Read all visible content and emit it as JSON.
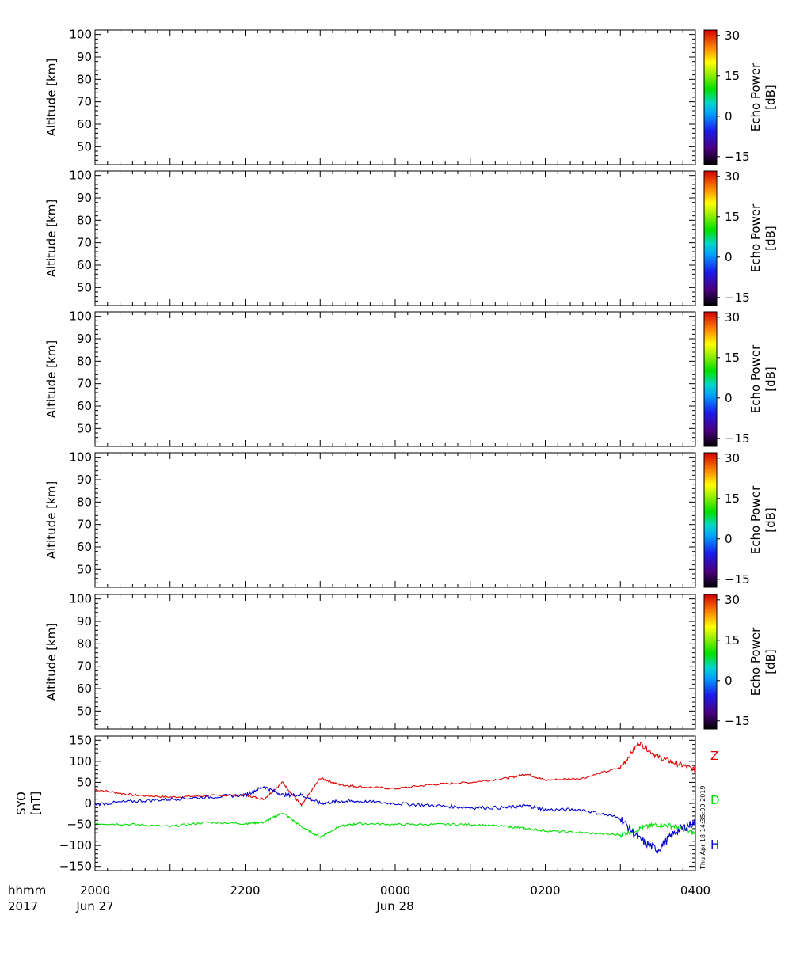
{
  "chart_data": [
    {
      "type": "heatmap",
      "ylabel": "Altitude [km]",
      "yticks": [
        "50",
        "60",
        "70",
        "80",
        "90",
        "100"
      ],
      "ylim": [
        42,
        102
      ],
      "colorbar_label": "Echo Power\n[dB]",
      "colorbar_ticks": [
        "30",
        "15",
        "0",
        "−15"
      ],
      "colorbar_range": [
        -18,
        32
      ],
      "values": []
    },
    {
      "type": "heatmap",
      "ylabel": "Altitude [km]",
      "yticks": [
        "50",
        "60",
        "70",
        "80",
        "90",
        "100"
      ],
      "ylim": [
        42,
        102
      ],
      "colorbar_label": "Echo Power\n[dB]",
      "colorbar_ticks": [
        "30",
        "15",
        "0",
        "−15"
      ],
      "colorbar_range": [
        -18,
        32
      ],
      "values": []
    },
    {
      "type": "heatmap",
      "ylabel": "Altitude [km]",
      "yticks": [
        "50",
        "60",
        "70",
        "80",
        "90",
        "100"
      ],
      "ylim": [
        42,
        102
      ],
      "colorbar_label": "Echo Power\n[dB]",
      "colorbar_ticks": [
        "30",
        "15",
        "0",
        "−15"
      ],
      "colorbar_range": [
        -18,
        32
      ],
      "values": []
    },
    {
      "type": "heatmap",
      "ylabel": "Altitude [km]",
      "yticks": [
        "50",
        "60",
        "70",
        "80",
        "90",
        "100"
      ],
      "ylim": [
        42,
        102
      ],
      "colorbar_label": "Echo Power\n[dB]",
      "colorbar_ticks": [
        "30",
        "15",
        "0",
        "−15"
      ],
      "colorbar_range": [
        -18,
        32
      ],
      "values": []
    },
    {
      "type": "heatmap",
      "ylabel": "Altitude [km]",
      "yticks": [
        "50",
        "60",
        "70",
        "80",
        "90",
        "100"
      ],
      "ylim": [
        42,
        102
      ],
      "colorbar_label": "Echo Power\n[dB]",
      "colorbar_ticks": [
        "30",
        "15",
        "0",
        "−15"
      ],
      "colorbar_range": [
        -18,
        32
      ],
      "values": []
    },
    {
      "type": "line",
      "ylabel": "SYO\n[nT]",
      "ylim": [
        -160,
        160
      ],
      "yticks": [
        "150",
        "100",
        "50",
        "0",
        "−50",
        "−100",
        "−150"
      ],
      "x": [
        20.0,
        20.5,
        21.0,
        21.5,
        22.0,
        22.25,
        22.5,
        22.75,
        23.0,
        23.25,
        23.5,
        24.0,
        24.5,
        25.0,
        25.5,
        25.75,
        26.0,
        26.5,
        27.0,
        27.25,
        27.5,
        27.75,
        28.0
      ],
      "series": [
        {
          "name": "Z",
          "color": "#e00000",
          "values": [
            33,
            20,
            15,
            18,
            20,
            10,
            50,
            -5,
            60,
            45,
            40,
            35,
            45,
            50,
            60,
            70,
            55,
            60,
            85,
            145,
            110,
            95,
            80
          ]
        },
        {
          "name": "D",
          "color": "#00dd00",
          "values": [
            -48,
            -50,
            -55,
            -45,
            -48,
            -45,
            -22,
            -55,
            -80,
            -55,
            -48,
            -50,
            -50,
            -50,
            -55,
            -60,
            -65,
            -70,
            -75,
            -60,
            -50,
            -55,
            -72
          ]
        },
        {
          "name": "H",
          "color": "#0000d0",
          "values": [
            -2,
            5,
            10,
            15,
            20,
            40,
            20,
            20,
            0,
            5,
            5,
            0,
            -5,
            -10,
            -10,
            -5,
            -15,
            -15,
            -35,
            -85,
            -110,
            -65,
            -45
          ]
        }
      ]
    }
  ],
  "xaxis": {
    "ticks": [
      {
        "time": "2000",
        "date": "Jun 27"
      },
      {
        "time": "2200",
        "date": ""
      },
      {
        "time": "0000",
        "date": "Jun 28"
      },
      {
        "time": "0200",
        "date": ""
      },
      {
        "time": "0400",
        "date": ""
      }
    ],
    "row1_label": "hhmm",
    "row2_label": "2017"
  },
  "timestamp": "Thu Apr 18 14:35:09 2019"
}
